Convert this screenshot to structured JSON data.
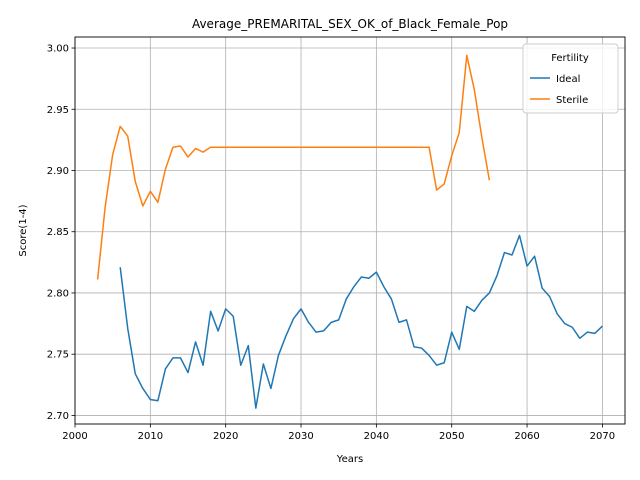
{
  "chart_data": {
    "type": "line",
    "title": "Average_PREMARITAL_SEX_OK_of_Black_Female_Pop",
    "xlabel": "Years",
    "ylabel": "Score(1-4)",
    "xlim": [
      2000,
      2073
    ],
    "ylim": [
      2.693,
      3.009
    ],
    "xticks": [
      2000,
      2010,
      2020,
      2030,
      2040,
      2050,
      2060,
      2070
    ],
    "yticks": [
      2.7,
      2.75,
      2.8,
      2.85,
      2.9,
      2.95,
      3.0
    ],
    "ytick_labels": [
      "2.70",
      "2.75",
      "2.80",
      "2.85",
      "2.90",
      "2.95",
      "3.00"
    ],
    "grid": true,
    "legend": {
      "title": "Fertility",
      "position": "top-right"
    },
    "series": [
      {
        "name": "Ideal",
        "color": "#1f77b4",
        "x": [
          2006,
          2007,
          2008,
          2009,
          2010,
          2011,
          2012,
          2013,
          2014,
          2015,
          2016,
          2017,
          2018,
          2019,
          2020,
          2021,
          2022,
          2023,
          2024,
          2025,
          2026,
          2027,
          2028,
          2029,
          2030,
          2031,
          2032,
          2033,
          2034,
          2035,
          2036,
          2037,
          2038,
          2039,
          2040,
          2041,
          2042,
          2043,
          2044,
          2045,
          2046,
          2047,
          2048,
          2049,
          2050,
          2051,
          2052,
          2053,
          2054,
          2055,
          2056,
          2057,
          2058,
          2059,
          2060,
          2061,
          2062,
          2063,
          2064,
          2065,
          2066,
          2067,
          2068,
          2069,
          2070
        ],
        "values": [
          2.821,
          2.771,
          2.734,
          2.722,
          2.713,
          2.712,
          2.738,
          2.747,
          2.747,
          2.735,
          2.76,
          2.741,
          2.785,
          2.769,
          2.787,
          2.781,
          2.741,
          2.757,
          2.706,
          2.742,
          2.722,
          2.749,
          2.765,
          2.779,
          2.787,
          2.776,
          2.768,
          2.769,
          2.776,
          2.778,
          2.795,
          2.805,
          2.813,
          2.812,
          2.817,
          2.805,
          2.795,
          2.776,
          2.778,
          2.756,
          2.755,
          2.749,
          2.741,
          2.743,
          2.768,
          2.754,
          2.789,
          2.785,
          2.794,
          2.8,
          2.814,
          2.833,
          2.831,
          2.847,
          2.822,
          2.83,
          2.804,
          2.797,
          2.783,
          2.775,
          2.772,
          2.763,
          2.768,
          2.767,
          2.773
        ]
      },
      {
        "name": "Sterile",
        "color": "#ff7f0e",
        "x": [
          2003,
          2004,
          2005,
          2006,
          2007,
          2008,
          2009,
          2010,
          2011,
          2012,
          2013,
          2014,
          2015,
          2016,
          2017,
          2018,
          2019,
          2020,
          2021,
          2022,
          2023,
          2024,
          2025,
          2026,
          2027,
          2028,
          2029,
          2030,
          2031,
          2032,
          2033,
          2034,
          2035,
          2036,
          2037,
          2038,
          2039,
          2040,
          2041,
          2042,
          2043,
          2044,
          2045,
          2046,
          2047,
          2048,
          2049,
          2050,
          2051,
          2052,
          2053,
          2054,
          2055
        ],
        "values": [
          2.811,
          2.87,
          2.913,
          2.936,
          2.928,
          2.891,
          2.871,
          2.883,
          2.874,
          2.901,
          2.919,
          2.92,
          2.911,
          2.918,
          2.915,
          2.919,
          2.919,
          2.919,
          2.919,
          2.919,
          2.919,
          2.919,
          2.919,
          2.919,
          2.919,
          2.919,
          2.919,
          2.919,
          2.919,
          2.919,
          2.919,
          2.919,
          2.919,
          2.919,
          2.919,
          2.919,
          2.919,
          2.919,
          2.919,
          2.919,
          2.919,
          2.919,
          2.919,
          2.919,
          2.919,
          2.884,
          2.889,
          2.912,
          2.931,
          2.994,
          2.966,
          2.927,
          2.892
        ]
      }
    ]
  }
}
